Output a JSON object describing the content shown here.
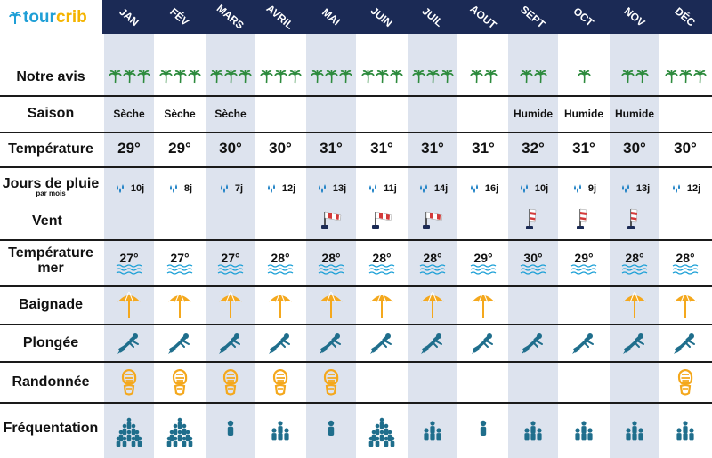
{
  "brand": {
    "part1": "tour",
    "part2": "crib"
  },
  "months": [
    "JAN",
    "FÉV",
    "MARS",
    "AVRIL",
    "MAI",
    "JUIN",
    "JUIL",
    "AOUT",
    "SEPT",
    "OCT",
    "NOV",
    "DÉC"
  ],
  "rows": {
    "avis": "Notre avis",
    "saison": "Saison",
    "temperature": "Température",
    "pluie": "Jours de pluie",
    "pluie_sub": "par mois",
    "vent": "Vent",
    "temp_mer": "Température mer",
    "baignade": "Baignade",
    "plongee": "Plongée",
    "randonnee": "Randonnée",
    "frequentation": "Fréquentation"
  },
  "avis_palms": [
    3,
    3,
    3,
    3,
    3,
    3,
    3,
    2,
    2,
    1,
    2,
    3
  ],
  "saison": [
    "Sèche",
    "Sèche",
    "Sèche",
    "",
    "",
    "",
    "",
    "",
    "Humide",
    "Humide",
    "Humide",
    ""
  ],
  "temperature": [
    "29°",
    "29°",
    "30°",
    "30°",
    "31°",
    "31°",
    "31°",
    "31°",
    "32°",
    "31°",
    "30°",
    "30°"
  ],
  "pluie": [
    "10j",
    "8j",
    "7j",
    "12j",
    "13j",
    "11j",
    "14j",
    "16j",
    "10j",
    "9j",
    "13j",
    "12j"
  ],
  "vent": [
    "none",
    "none",
    "none",
    "none",
    "horizontal",
    "horizontal",
    "horizontal",
    "none",
    "vertical",
    "vertical",
    "vertical",
    "none"
  ],
  "temp_mer": [
    "27°",
    "27°",
    "27°",
    "28°",
    "28°",
    "28°",
    "28°",
    "29°",
    "30°",
    "29°",
    "28°",
    "28°"
  ],
  "baignade": [
    true,
    true,
    true,
    true,
    true,
    true,
    true,
    true,
    false,
    false,
    true,
    true
  ],
  "plongee": [
    true,
    true,
    true,
    true,
    true,
    true,
    true,
    true,
    true,
    true,
    true,
    true
  ],
  "randonnee": [
    true,
    true,
    true,
    true,
    true,
    false,
    false,
    false,
    false,
    false,
    false,
    true
  ],
  "frequentation": [
    4,
    4,
    1,
    2,
    1,
    4,
    2,
    1,
    2,
    2,
    2,
    2
  ],
  "icons": {
    "palm": "palm-tree-icon",
    "drop": "rain-drop-icon",
    "windsock": "windsock-icon",
    "wave": "sea-wave-icon",
    "umbrella": "beach-umbrella-icon",
    "diver": "diver-icon",
    "shoe": "hiking-footprint-icon",
    "person": "person-icon"
  },
  "colors": {
    "header": "#1b2a55",
    "column_shade": "#dde3ee",
    "palm": "#2e8b3e",
    "drop": "#1a7fc4",
    "wave": "#1a9fd6",
    "umbrella": "#f4a81d",
    "diver": "#1f6e8c",
    "shoe": "#f4a81d",
    "person": "#1f6e8c",
    "windsock_red": "#d33a3a"
  }
}
